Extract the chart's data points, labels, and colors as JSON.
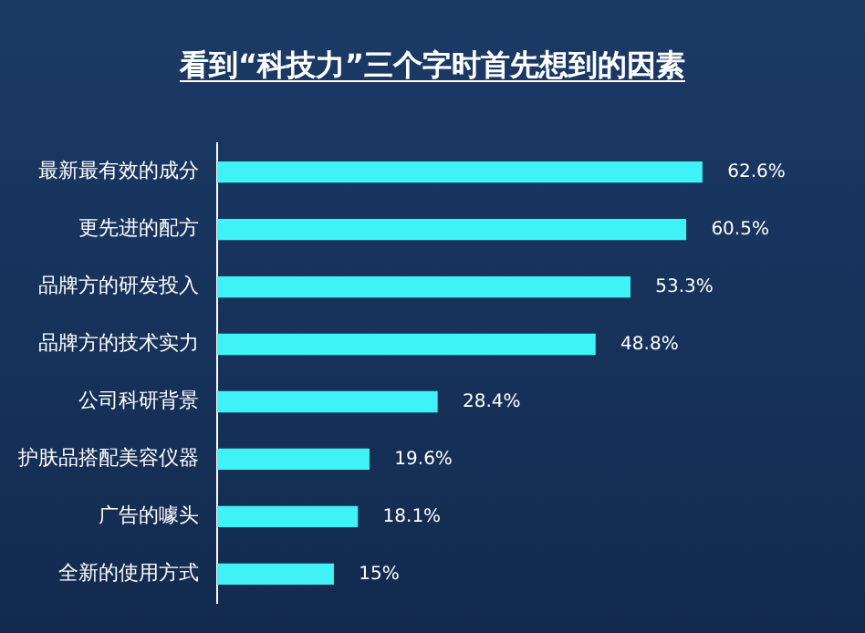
{
  "chart_data": {
    "type": "bar",
    "orientation": "horizontal",
    "title": "看到“科技力”三个字时首先想到的因素",
    "categories": [
      "最新最有效的成分",
      "更先进的配方",
      "品牌方的研发投入",
      "品牌方的技术实力",
      "公司科研背景",
      "护肤品搭配美容仪器",
      "广告的噱头",
      "全新的使用方式"
    ],
    "values": [
      62.6,
      60.5,
      53.3,
      48.8,
      28.4,
      19.6,
      18.1,
      15
    ],
    "value_labels": [
      "62.6%",
      "60.5%",
      "53.3%",
      "48.8%",
      "28.4%",
      "19.6%",
      "18.1%",
      "15%"
    ],
    "color": "#3ef2f5",
    "tick_labels": "y"
  }
}
